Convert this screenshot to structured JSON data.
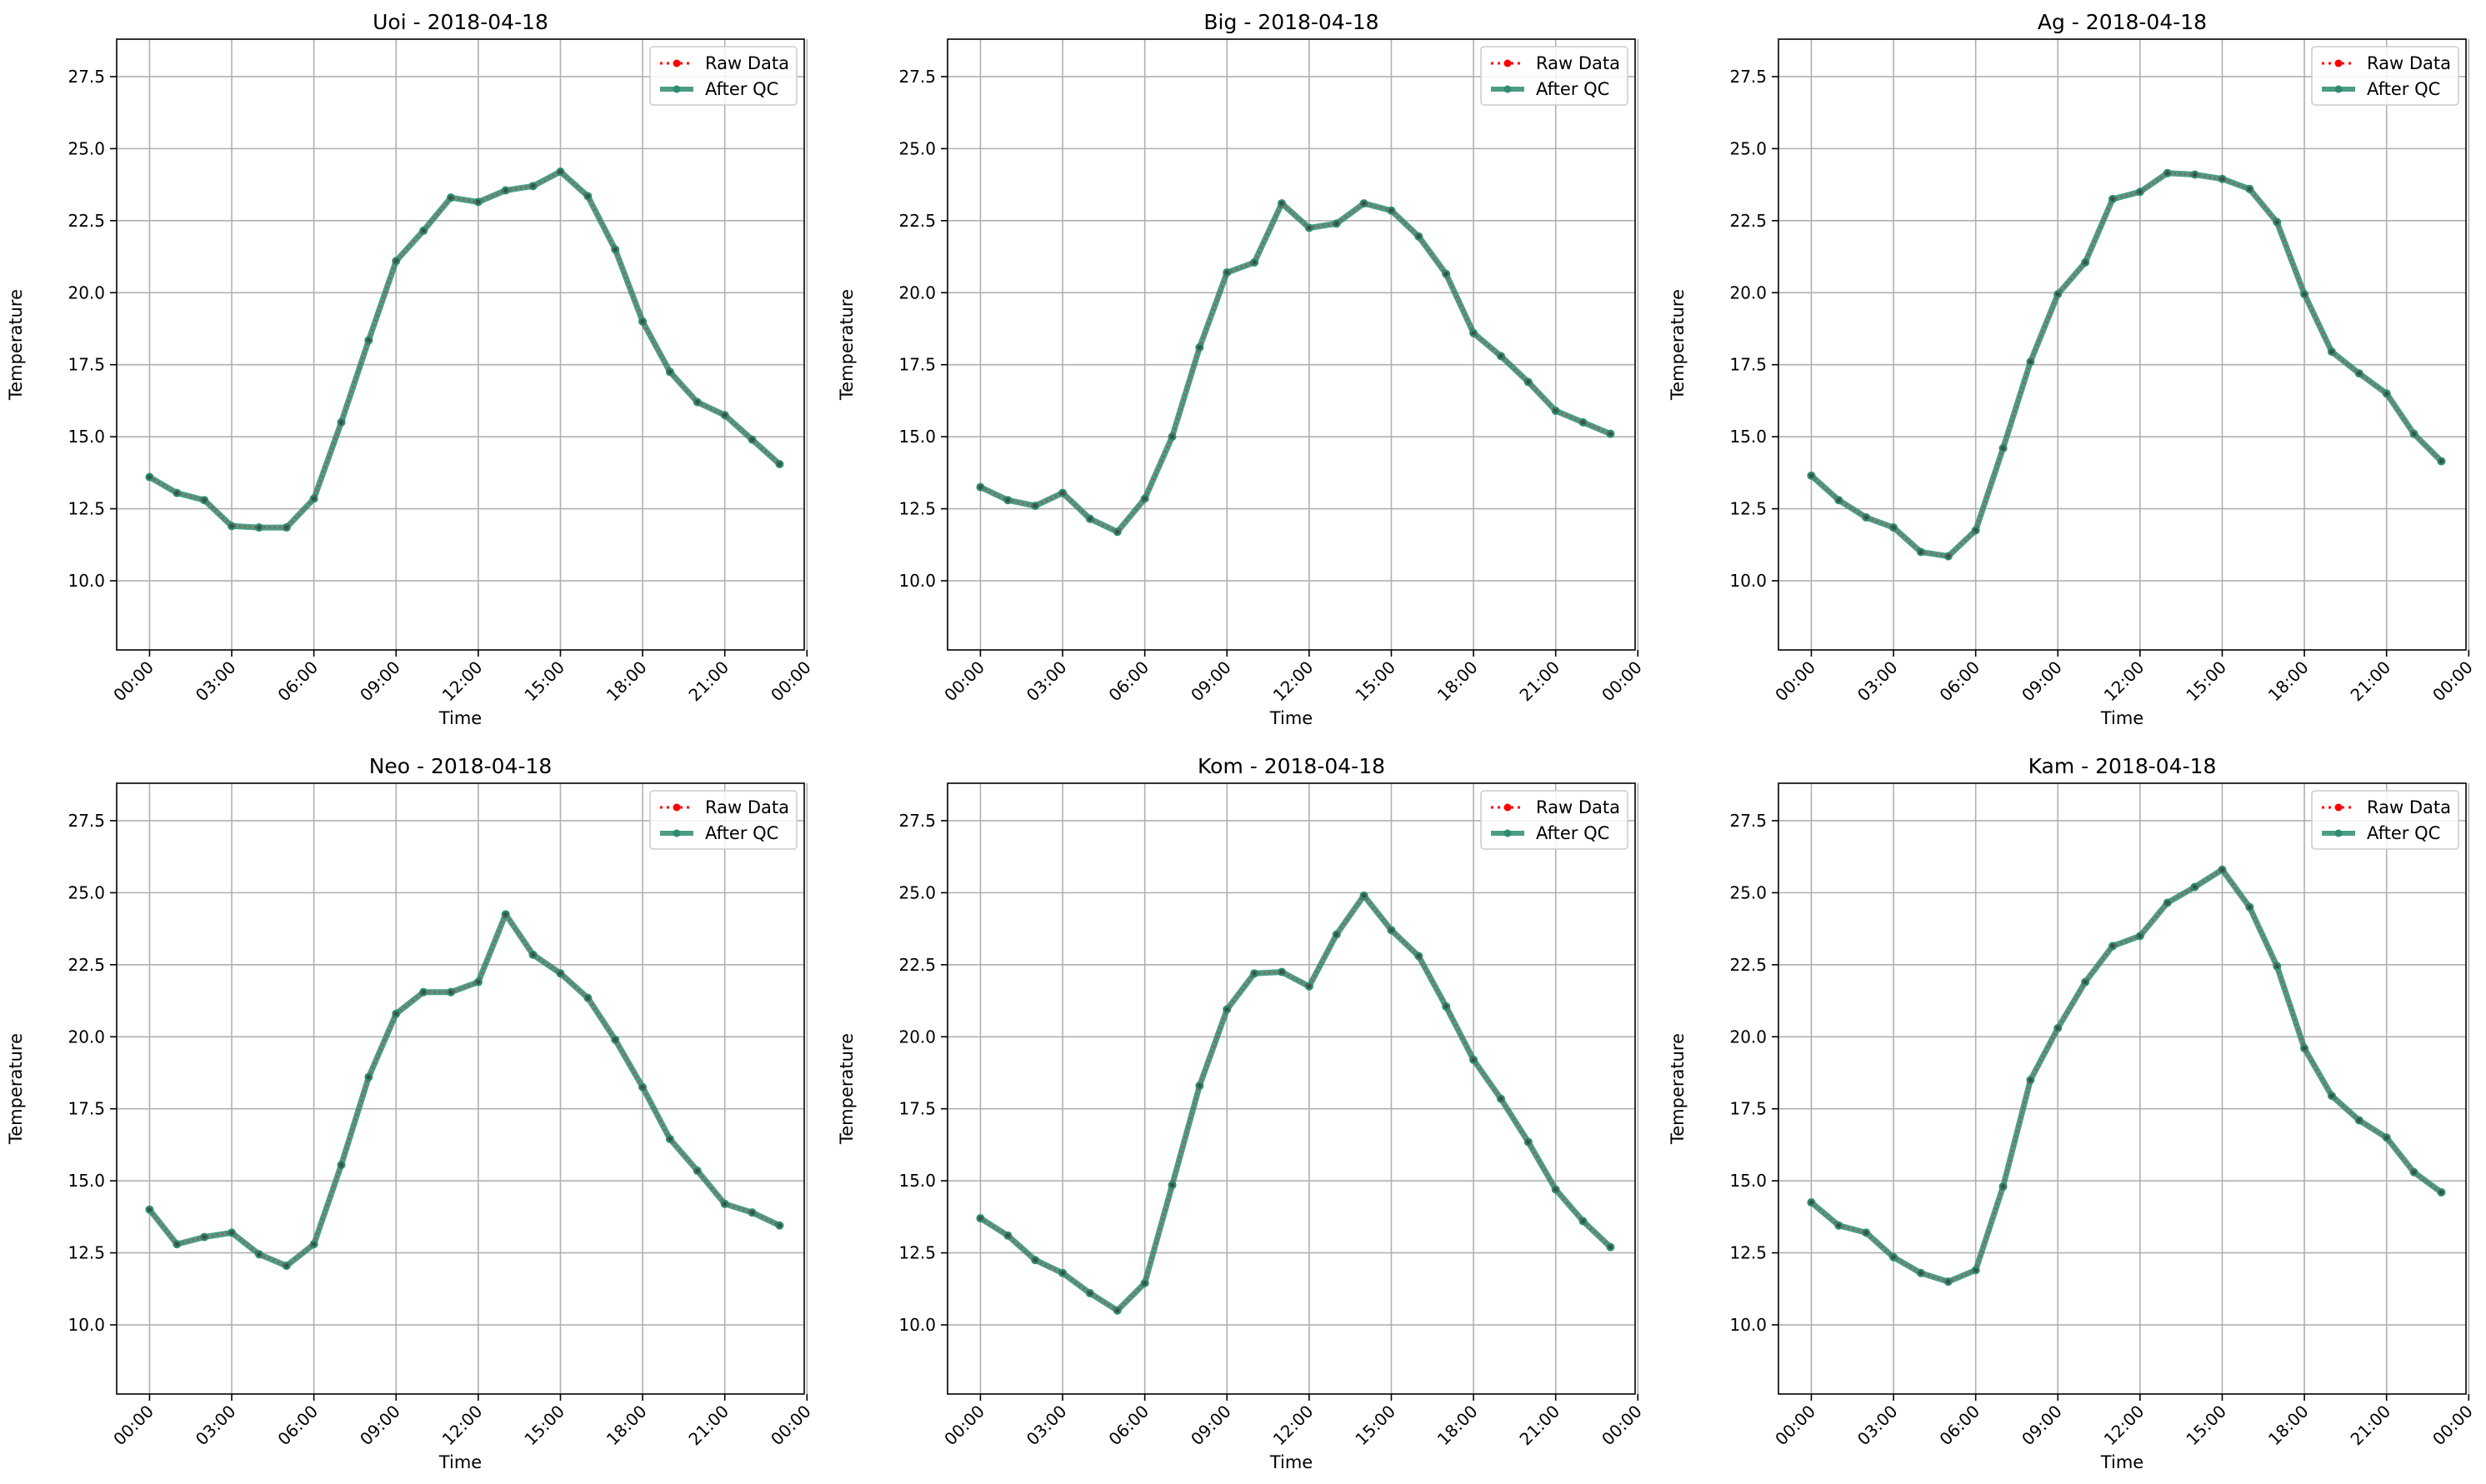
{
  "figure": {
    "background": "#ffffff",
    "raw_color": "#ff0000",
    "qc_color": "#2e8b70",
    "grid_color": "#b0b0b0"
  },
  "chart_data": [
    {
      "type": "line",
      "title": "Uoi - 2018-04-18",
      "xlabel": "Time",
      "ylabel": "Temperature",
      "x": [
        0,
        1,
        2,
        3,
        4,
        5,
        6,
        7,
        8,
        9,
        10,
        11,
        12,
        13,
        14,
        15,
        16,
        17,
        18,
        19,
        20,
        21,
        22,
        23
      ],
      "xlim": [
        -1.2,
        23.9
      ],
      "ylim": [
        7.6,
        28.8
      ],
      "xticks": [
        0,
        3,
        6,
        9,
        12,
        15,
        18,
        21,
        24
      ],
      "xtick_labels": [
        "00:00",
        "03:00",
        "06:00",
        "09:00",
        "12:00",
        "15:00",
        "18:00",
        "21:00",
        "00:00"
      ],
      "yticks": [
        10.0,
        12.5,
        15.0,
        17.5,
        20.0,
        22.5,
        25.0,
        27.5
      ],
      "ytick_labels": [
        "10.0",
        "12.5",
        "15.0",
        "17.5",
        "20.0",
        "22.5",
        "25.0",
        "27.5"
      ],
      "grid": true,
      "legend": "top-right",
      "series": [
        {
          "name": "Raw Data",
          "style": "dotted",
          "values": [
            13.6,
            13.05,
            12.8,
            11.9,
            11.85,
            11.85,
            12.85,
            15.5,
            18.35,
            21.1,
            22.15,
            23.3,
            23.15,
            23.55,
            23.7,
            24.2,
            23.35,
            21.5,
            19.0,
            17.25,
            16.2,
            15.75,
            14.9,
            14.05
          ]
        },
        {
          "name": "After QC",
          "style": "solid",
          "values": [
            13.6,
            13.05,
            12.8,
            11.9,
            11.85,
            11.85,
            12.85,
            15.5,
            18.35,
            21.1,
            22.15,
            23.3,
            23.15,
            23.55,
            23.7,
            24.2,
            23.35,
            21.5,
            19.0,
            17.25,
            16.2,
            15.75,
            14.9,
            14.05
          ]
        }
      ]
    },
    {
      "type": "line",
      "title": "Big - 2018-04-18",
      "xlabel": "Time",
      "ylabel": "Temperature",
      "x": [
        0,
        1,
        2,
        3,
        4,
        5,
        6,
        7,
        8,
        9,
        10,
        11,
        12,
        13,
        14,
        15,
        16,
        17,
        18,
        19,
        20,
        21,
        22,
        23
      ],
      "xlim": [
        -1.2,
        23.9
      ],
      "ylim": [
        7.6,
        28.8
      ],
      "xticks": [
        0,
        3,
        6,
        9,
        12,
        15,
        18,
        21,
        24
      ],
      "xtick_labels": [
        "00:00",
        "03:00",
        "06:00",
        "09:00",
        "12:00",
        "15:00",
        "18:00",
        "21:00",
        "00:00"
      ],
      "yticks": [
        10.0,
        12.5,
        15.0,
        17.5,
        20.0,
        22.5,
        25.0,
        27.5
      ],
      "ytick_labels": [
        "10.0",
        "12.5",
        "15.0",
        "17.5",
        "20.0",
        "22.5",
        "25.0",
        "27.5"
      ],
      "grid": true,
      "legend": "top-right",
      "series": [
        {
          "name": "Raw Data",
          "style": "dotted",
          "values": [
            13.25,
            12.8,
            12.6,
            13.05,
            12.15,
            11.7,
            12.85,
            15.0,
            18.1,
            20.7,
            21.05,
            23.1,
            22.25,
            22.4,
            23.1,
            22.85,
            21.95,
            20.65,
            18.6,
            17.8,
            16.9,
            15.9,
            15.5,
            15.1
          ]
        },
        {
          "name": "After QC",
          "style": "solid",
          "values": [
            13.25,
            12.8,
            12.6,
            13.05,
            12.15,
            11.7,
            12.85,
            15.0,
            18.1,
            20.7,
            21.05,
            23.1,
            22.25,
            22.4,
            23.1,
            22.85,
            21.95,
            20.65,
            18.6,
            17.8,
            16.9,
            15.9,
            15.5,
            15.1
          ]
        }
      ]
    },
    {
      "type": "line",
      "title": "Ag - 2018-04-18",
      "xlabel": "Time",
      "ylabel": "Temperature",
      "x": [
        0,
        1,
        2,
        3,
        4,
        5,
        6,
        7,
        8,
        9,
        10,
        11,
        12,
        13,
        14,
        15,
        16,
        17,
        18,
        19,
        20,
        21,
        22,
        23
      ],
      "xlim": [
        -1.2,
        23.9
      ],
      "ylim": [
        7.6,
        28.8
      ],
      "xticks": [
        0,
        3,
        6,
        9,
        12,
        15,
        18,
        21,
        24
      ],
      "xtick_labels": [
        "00:00",
        "03:00",
        "06:00",
        "09:00",
        "12:00",
        "15:00",
        "18:00",
        "21:00",
        "00:00"
      ],
      "yticks": [
        10.0,
        12.5,
        15.0,
        17.5,
        20.0,
        22.5,
        25.0,
        27.5
      ],
      "ytick_labels": [
        "10.0",
        "12.5",
        "15.0",
        "17.5",
        "20.0",
        "22.5",
        "25.0",
        "27.5"
      ],
      "grid": true,
      "legend": "top-right",
      "series": [
        {
          "name": "Raw Data",
          "style": "dotted",
          "values": [
            13.65,
            12.8,
            12.2,
            11.85,
            11.0,
            10.85,
            11.75,
            14.6,
            17.6,
            19.95,
            21.05,
            23.25,
            23.5,
            24.15,
            24.1,
            23.95,
            23.6,
            22.45,
            19.95,
            17.95,
            17.2,
            16.5,
            15.1,
            14.15
          ]
        },
        {
          "name": "After QC",
          "style": "solid",
          "values": [
            13.65,
            12.8,
            12.2,
            11.85,
            11.0,
            10.85,
            11.75,
            14.6,
            17.6,
            19.95,
            21.05,
            23.25,
            23.5,
            24.15,
            24.1,
            23.95,
            23.6,
            22.45,
            19.95,
            17.95,
            17.2,
            16.5,
            15.1,
            14.15
          ]
        }
      ]
    },
    {
      "type": "line",
      "title": "Neo - 2018-04-18",
      "xlabel": "Time",
      "ylabel": "Temperature",
      "x": [
        0,
        1,
        2,
        3,
        4,
        5,
        6,
        7,
        8,
        9,
        10,
        11,
        12,
        13,
        14,
        15,
        16,
        17,
        18,
        19,
        20,
        21,
        22,
        23
      ],
      "xlim": [
        -1.2,
        23.9
      ],
      "ylim": [
        7.6,
        28.8
      ],
      "xticks": [
        0,
        3,
        6,
        9,
        12,
        15,
        18,
        21,
        24
      ],
      "xtick_labels": [
        "00:00",
        "03:00",
        "06:00",
        "09:00",
        "12:00",
        "15:00",
        "18:00",
        "21:00",
        "00:00"
      ],
      "yticks": [
        10.0,
        12.5,
        15.0,
        17.5,
        20.0,
        22.5,
        25.0,
        27.5
      ],
      "ytick_labels": [
        "10.0",
        "12.5",
        "15.0",
        "17.5",
        "20.0",
        "22.5",
        "25.0",
        "27.5"
      ],
      "grid": true,
      "legend": "top-right",
      "series": [
        {
          "name": "Raw Data",
          "style": "dotted",
          "values": [
            14.0,
            12.8,
            13.05,
            13.2,
            12.45,
            12.05,
            12.8,
            15.55,
            18.6,
            20.8,
            21.55,
            21.55,
            21.9,
            24.25,
            22.85,
            22.2,
            21.35,
            19.9,
            18.25,
            16.45,
            15.35,
            14.2,
            13.9,
            13.45
          ]
        },
        {
          "name": "After QC",
          "style": "solid",
          "values": [
            14.0,
            12.8,
            13.05,
            13.2,
            12.45,
            12.05,
            12.8,
            15.55,
            18.6,
            20.8,
            21.55,
            21.55,
            21.9,
            24.25,
            22.85,
            22.2,
            21.35,
            19.9,
            18.25,
            16.45,
            15.35,
            14.2,
            13.9,
            13.45
          ]
        }
      ]
    },
    {
      "type": "line",
      "title": "Kom - 2018-04-18",
      "xlabel": "Time",
      "ylabel": "Temperature",
      "x": [
        0,
        1,
        2,
        3,
        4,
        5,
        6,
        7,
        8,
        9,
        10,
        11,
        12,
        13,
        14,
        15,
        16,
        17,
        18,
        19,
        20,
        21,
        22,
        23
      ],
      "xlim": [
        -1.2,
        23.9
      ],
      "ylim": [
        7.6,
        28.8
      ],
      "xticks": [
        0,
        3,
        6,
        9,
        12,
        15,
        18,
        21,
        24
      ],
      "xtick_labels": [
        "00:00",
        "03:00",
        "06:00",
        "09:00",
        "12:00",
        "15:00",
        "18:00",
        "21:00",
        "00:00"
      ],
      "yticks": [
        10.0,
        12.5,
        15.0,
        17.5,
        20.0,
        22.5,
        25.0,
        27.5
      ],
      "ytick_labels": [
        "10.0",
        "12.5",
        "15.0",
        "17.5",
        "20.0",
        "22.5",
        "25.0",
        "27.5"
      ],
      "grid": true,
      "legend": "top-right",
      "series": [
        {
          "name": "Raw Data",
          "style": "dotted",
          "values": [
            13.7,
            13.1,
            12.25,
            11.8,
            11.1,
            10.5,
            11.45,
            14.85,
            18.3,
            20.95,
            22.2,
            22.25,
            21.75,
            23.55,
            24.9,
            23.7,
            22.8,
            21.05,
            19.2,
            17.85,
            16.35,
            14.7,
            13.6,
            12.7
          ]
        },
        {
          "name": "After QC",
          "style": "solid",
          "values": [
            13.7,
            13.1,
            12.25,
            11.8,
            11.1,
            10.5,
            11.45,
            14.85,
            18.3,
            20.95,
            22.2,
            22.25,
            21.75,
            23.55,
            24.9,
            23.7,
            22.8,
            21.05,
            19.2,
            17.85,
            16.35,
            14.7,
            13.6,
            12.7
          ]
        }
      ]
    },
    {
      "type": "line",
      "title": "Kam - 2018-04-18",
      "xlabel": "Time",
      "ylabel": "Temperature",
      "x": [
        0,
        1,
        2,
        3,
        4,
        5,
        6,
        7,
        8,
        9,
        10,
        11,
        12,
        13,
        14,
        15,
        16,
        17,
        18,
        19,
        20,
        21,
        22,
        23
      ],
      "xlim": [
        -1.2,
        23.9
      ],
      "ylim": [
        7.6,
        28.8
      ],
      "xticks": [
        0,
        3,
        6,
        9,
        12,
        15,
        18,
        21,
        24
      ],
      "xtick_labels": [
        "00:00",
        "03:00",
        "06:00",
        "09:00",
        "12:00",
        "15:00",
        "18:00",
        "21:00",
        "00:00"
      ],
      "yticks": [
        10.0,
        12.5,
        15.0,
        17.5,
        20.0,
        22.5,
        25.0,
        27.5
      ],
      "ytick_labels": [
        "10.0",
        "12.5",
        "15.0",
        "17.5",
        "20.0",
        "22.5",
        "25.0",
        "27.5"
      ],
      "grid": true,
      "legend": "top-right",
      "series": [
        {
          "name": "Raw Data",
          "style": "dotted",
          "values": [
            14.25,
            13.45,
            13.2,
            12.35,
            11.8,
            11.5,
            11.9,
            14.8,
            18.5,
            20.3,
            21.9,
            23.15,
            23.5,
            24.65,
            25.2,
            25.8,
            24.5,
            22.45,
            19.6,
            17.95,
            17.1,
            16.5,
            15.3,
            14.6
          ]
        },
        {
          "name": "After QC",
          "style": "solid",
          "values": [
            14.25,
            13.45,
            13.2,
            12.35,
            11.8,
            11.5,
            11.9,
            14.8,
            18.5,
            20.3,
            21.9,
            23.15,
            23.5,
            24.65,
            25.2,
            25.8,
            24.5,
            22.45,
            19.6,
            17.95,
            17.1,
            16.5,
            15.3,
            14.6
          ]
        }
      ]
    }
  ]
}
